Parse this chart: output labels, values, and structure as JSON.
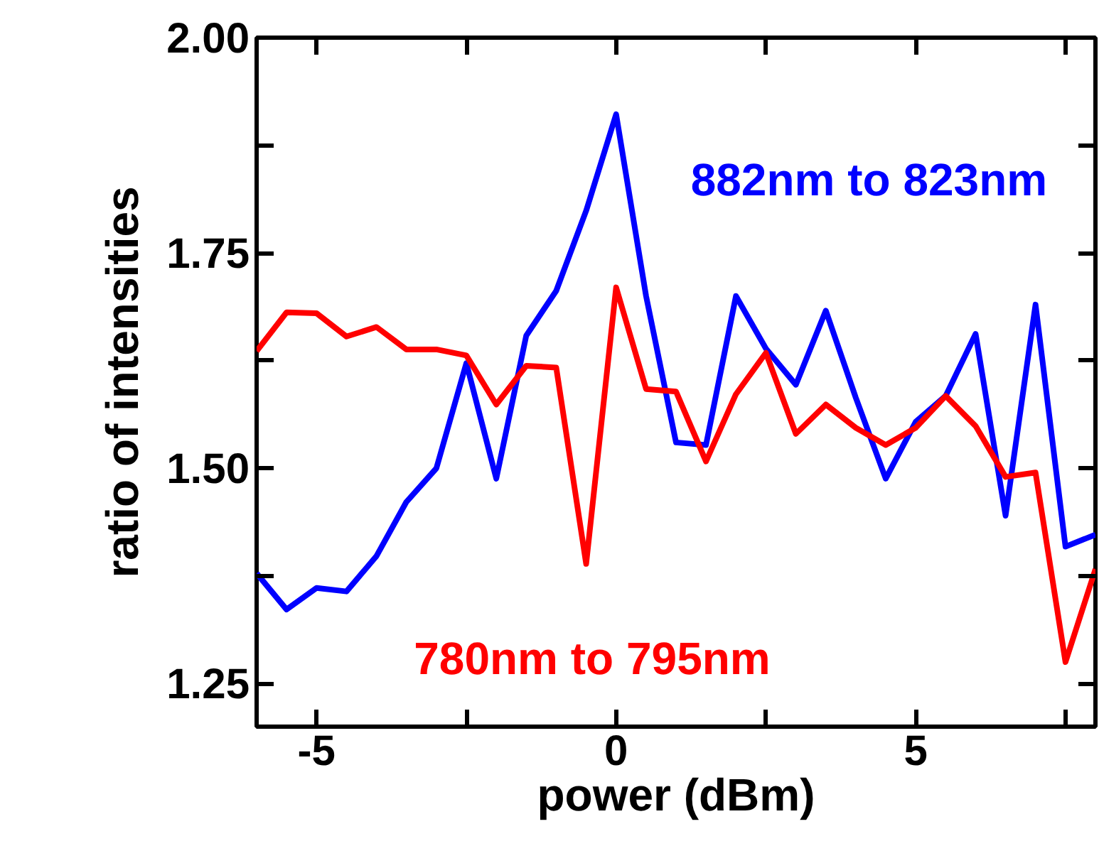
{
  "chart_data": {
    "type": "line",
    "xlabel": "power (dBm)",
    "ylabel": "ratio of intensities",
    "x": [
      -6,
      -5.5,
      -5,
      -4.5,
      -4,
      -3.5,
      -3,
      -2.5,
      -2,
      -1.5,
      -1,
      -0.5,
      0,
      0.5,
      1,
      1.5,
      2,
      2.5,
      3,
      3.5,
      4,
      4.5,
      5,
      5.5,
      6,
      6.5,
      7,
      7.5,
      8
    ],
    "series": [
      {
        "name": "882nm to 823nm",
        "color": "#0000ff",
        "values": [
          1.378,
          1.336,
          1.361,
          1.357,
          1.398,
          1.461,
          1.5,
          1.622,
          1.488,
          1.654,
          1.706,
          1.799,
          1.911,
          1.7,
          1.53,
          1.527,
          1.7,
          1.639,
          1.597,
          1.683,
          1.582,
          1.488,
          1.554,
          1.584,
          1.656,
          1.445,
          1.69,
          1.409,
          1.423
        ]
      },
      {
        "name": "780nm to 795nm",
        "color": "#ff0000",
        "values": [
          1.636,
          1.681,
          1.68,
          1.653,
          1.664,
          1.638,
          1.638,
          1.631,
          1.574,
          1.619,
          1.617,
          1.389,
          1.71,
          1.592,
          1.589,
          1.508,
          1.586,
          1.634,
          1.54,
          1.574,
          1.547,
          1.527,
          1.547,
          1.584,
          1.549,
          1.49,
          1.495,
          1.275,
          1.383
        ]
      }
    ],
    "xlim": [
      -6,
      8
    ],
    "ylim": [
      1.2,
      2.0
    ],
    "xticks": [
      -5,
      {
        "value": -2.5,
        "label": null
      },
      0,
      {
        "value": 2.5,
        "label": null
      },
      5,
      {
        "value": 7.5,
        "label": null
      }
    ],
    "yticks": [
      {
        "value": 1.25,
        "label": "1.25"
      },
      {
        "value": 1.375,
        "label": null
      },
      {
        "value": 1.5,
        "label": "1.50"
      },
      {
        "value": 1.625,
        "label": null
      },
      {
        "value": 1.75,
        "label": "1.75"
      },
      {
        "value": 1.875,
        "label": null
      },
      {
        "value": 2.0,
        "label": "2.00"
      }
    ],
    "grid": false,
    "marker": "none",
    "line_style": "solid"
  }
}
